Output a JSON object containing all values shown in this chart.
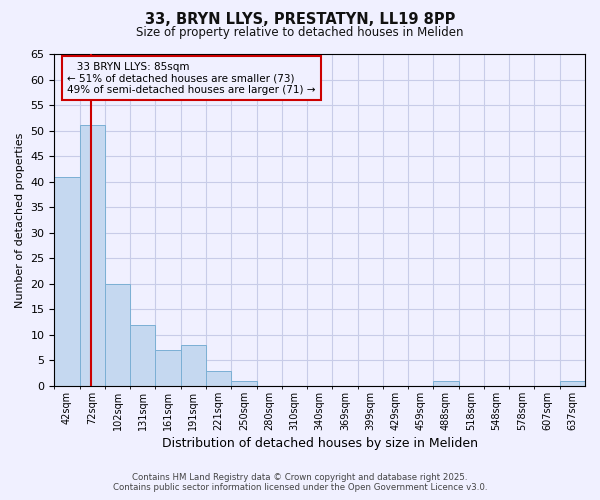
{
  "title_line1": "33, BRYN LLYS, PRESTATYN, LL19 8PP",
  "title_line2": "Size of property relative to detached houses in Meliden",
  "xlabel": "Distribution of detached houses by size in Meliden",
  "ylabel": "Number of detached properties",
  "bin_labels": [
    "42sqm",
    "72sqm",
    "102sqm",
    "131sqm",
    "161sqm",
    "191sqm",
    "221sqm",
    "250sqm",
    "280sqm",
    "310sqm",
    "340sqm",
    "369sqm",
    "399sqm",
    "429sqm",
    "459sqm",
    "488sqm",
    "518sqm",
    "548sqm",
    "578sqm",
    "607sqm",
    "637sqm"
  ],
  "bin_values": [
    41,
    51,
    20,
    12,
    7,
    8,
    3,
    1,
    0,
    0,
    0,
    0,
    0,
    0,
    0,
    1,
    0,
    0,
    0,
    0,
    1
  ],
  "ylim": [
    0,
    65
  ],
  "yticks": [
    0,
    5,
    10,
    15,
    20,
    25,
    30,
    35,
    40,
    45,
    50,
    55,
    60,
    65
  ],
  "bar_color": "#c5d8f0",
  "bar_edge_color": "#7bafd4",
  "vline_color": "#cc0000",
  "vline_x_index": 1.43,
  "annotation_title": "33 BRYN LLYS: 85sqm",
  "annotation_line1": "← 51% of detached houses are smaller (73)",
  "annotation_line2": "49% of semi-detached houses are larger (71) →",
  "box_edge_color": "#cc0000",
  "footer_line1": "Contains HM Land Registry data © Crown copyright and database right 2025.",
  "footer_line2": "Contains public sector information licensed under the Open Government Licence v3.0.",
  "background_color": "#f0f0ff",
  "grid_color": "#c8cce8"
}
